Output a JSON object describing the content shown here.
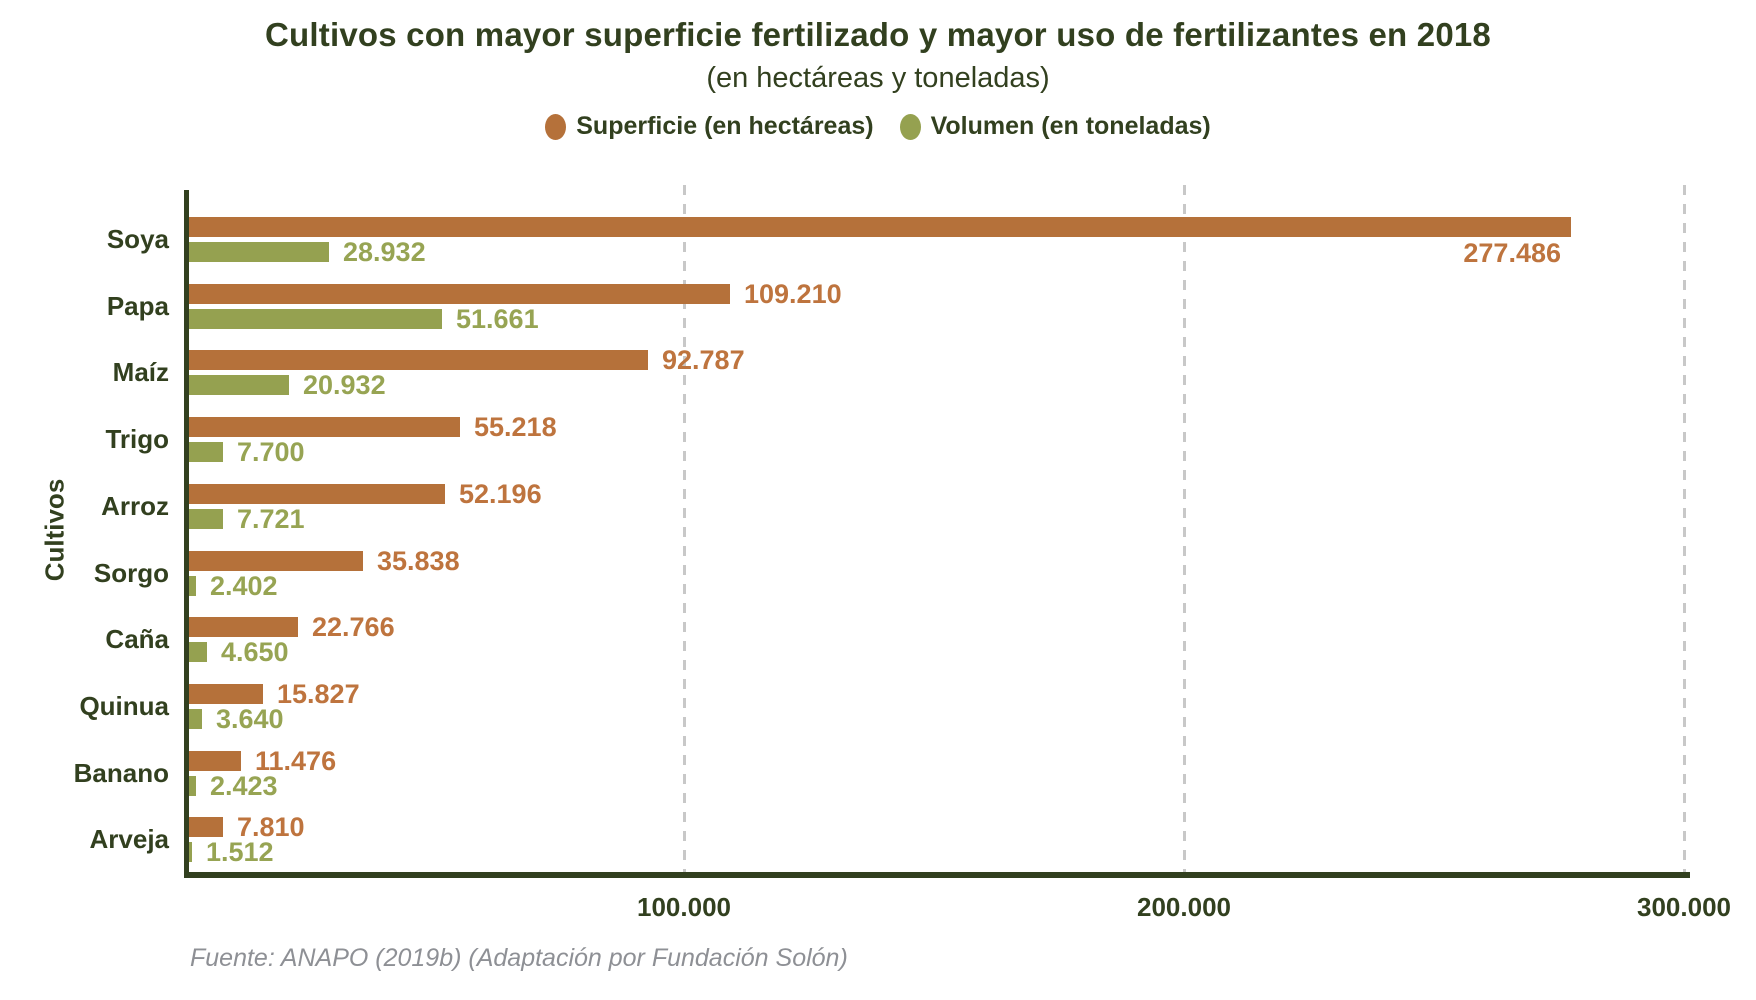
{
  "title": "Cultivos con mayor superficie fertilizado y mayor uso de fertilizantes en 2018",
  "subtitle": "(en hectáreas y toneladas)",
  "ylabel": "Cultivos",
  "source": "Fuente: ANAPO (2019b) (Adaptación por Fundación Solón)",
  "colors": {
    "superficie": "#B5713A",
    "superficie_text": "#BE743E",
    "volumen": "#95A150",
    "volumen_text": "#97A453",
    "axis": "#32401F",
    "grid": "#C8C8C8"
  },
  "legend": [
    {
      "label": "Superficie (en hectáreas)",
      "color": "#B5713A"
    },
    {
      "label": "Volumen (en toneladas)",
      "color": "#95A150"
    }
  ],
  "chart_data": {
    "type": "bar",
    "orientation": "horizontal",
    "title": "Cultivos con mayor superficie fertilizado y mayor uso de fertilizantes en 2018",
    "subtitle": "(en hectáreas y toneladas)",
    "ylabel": "Cultivos",
    "categories": [
      "Soya",
      "Papa",
      "Maíz",
      "Trigo",
      "Arroz",
      "Sorgo",
      "Caña",
      "Quinua",
      "Banano",
      "Arveja"
    ],
    "series": [
      {
        "name": "Superficie (en hectáreas)",
        "color": "#B5713A",
        "values": [
          277486,
          109210,
          92787,
          55218,
          52196,
          35838,
          22766,
          15827,
          11476,
          7810
        ],
        "labels": [
          "277.486",
          "109.210",
          "92.787",
          "55.218",
          "52.196",
          "35.838",
          "22.766",
          "15.827",
          "11.476",
          "7.810"
        ]
      },
      {
        "name": "Volumen (en toneladas)",
        "color": "#95A150",
        "values": [
          28932,
          51661,
          20932,
          7700,
          7721,
          2402,
          4650,
          3640,
          2423,
          1512
        ],
        "labels": [
          "28.932",
          "51.661",
          "20.932",
          "7.700",
          "7.721",
          "2.402",
          "4.650",
          "3.640",
          "2.423",
          "1.512"
        ]
      }
    ],
    "xlim": [
      0,
      300000
    ],
    "xticks": [
      {
        "value": 100000,
        "label": "100.000"
      },
      {
        "value": 200000,
        "label": "200.000"
      },
      {
        "value": 300000,
        "label": "300.000"
      }
    ],
    "grid": "dashed-vertical",
    "legend_position": "top"
  }
}
